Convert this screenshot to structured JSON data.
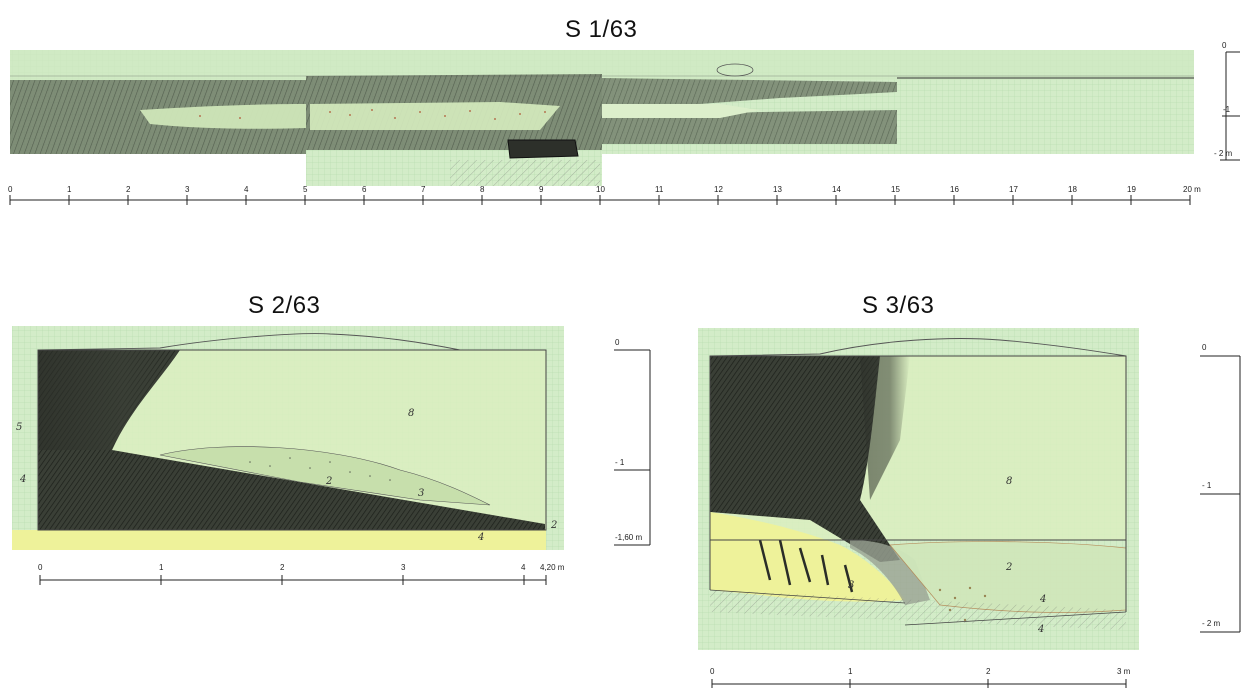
{
  "figures": [
    {
      "title": "S 1/63",
      "scale_labels": [
        "0",
        "1",
        "2",
        "3",
        "4",
        "5",
        "6",
        "7",
        "8",
        "9",
        "10",
        "11",
        "12",
        "13",
        "14",
        "15",
        "16",
        "17",
        "18",
        "19",
        "20 m"
      ],
      "depth_labels": [
        "0",
        "-1",
        "- 2 m"
      ]
    },
    {
      "title": "S 2/63",
      "scale_labels": [
        "0",
        "1",
        "2",
        "3",
        "4",
        "4,20 m"
      ],
      "depth_labels": [
        "0",
        "- 1",
        "-1,60 m"
      ],
      "layer_marks": [
        "5",
        "4",
        "8",
        "2",
        "3",
        "4",
        "2"
      ]
    },
    {
      "title": "S 3/63",
      "scale_labels": [
        "0",
        "1",
        "2",
        "3 m"
      ],
      "depth_labels": [
        "0",
        "- 1",
        "- 2 m"
      ],
      "layer_marks": [
        "3",
        "4",
        "2",
        "4",
        "8"
      ]
    }
  ],
  "colors": {
    "grid_paper": "#cfe9c8",
    "light_fill": "#d7efc0",
    "yellow_fill": "#f1f49a",
    "dark_fill": "#2e312b",
    "mid_dark": "#4f5a4a"
  }
}
